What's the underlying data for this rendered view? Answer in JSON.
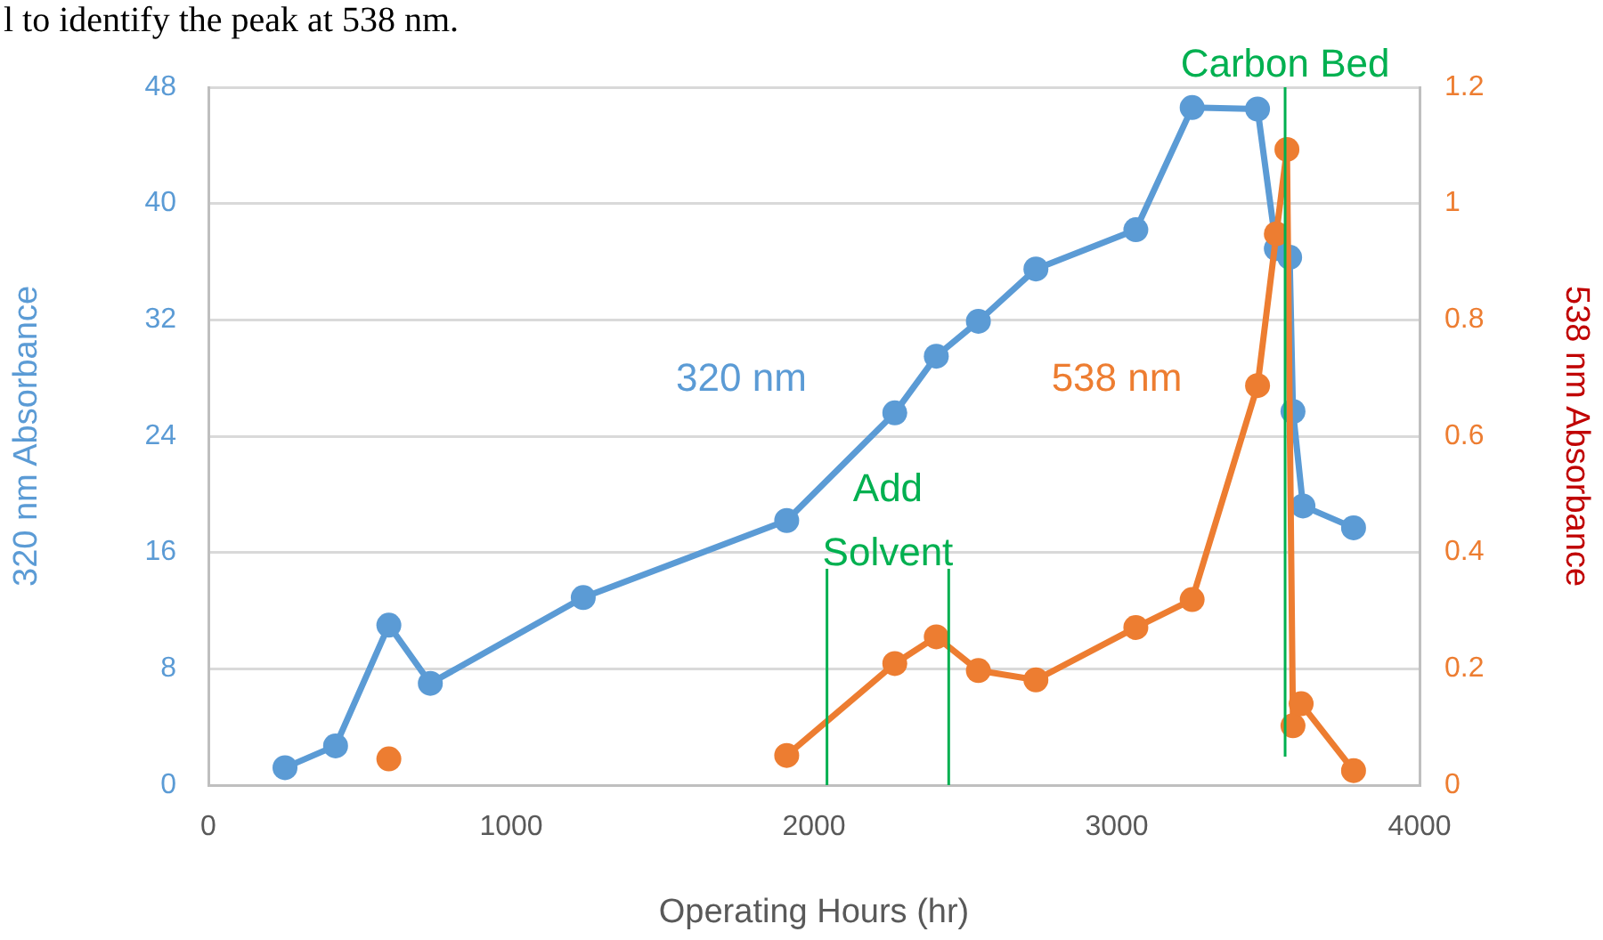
{
  "chart_data": {
    "type": "line",
    "xlabel": "Operating Hours (hr)",
    "ylabel": "320 nm Absorbance",
    "y2label": "538 nm Absorbance",
    "annotations": [
      "l to identify the peak at 538 nm."
    ],
    "xlim": [
      0,
      4000
    ],
    "xticks": [
      0,
      1000,
      2000,
      3000,
      4000
    ],
    "ylim": [
      0,
      48
    ],
    "yticks": [
      0,
      8,
      16,
      24,
      32,
      40,
      48
    ],
    "y2lim": [
      0,
      1.2
    ],
    "y2ticks": [
      0,
      0.2,
      0.4,
      0.6,
      0.8,
      1,
      1.2
    ],
    "grid": "y",
    "legend": false,
    "marker": "circle",
    "line_style": "solid",
    "series": [
      {
        "name": "320 nm",
        "color": "#5b9bd5",
        "x": [
          253,
          420,
          596,
          733,
          1238,
          1910,
          2267,
          2404,
          2543,
          2733,
          3063,
          3249,
          3465,
          3527,
          3571,
          3582,
          3615,
          3782
        ],
        "values": [
          1.2,
          2.7,
          11,
          7,
          12.9,
          18.2,
          25.6,
          29.5,
          31.9,
          35.5,
          38.2,
          46.6,
          46.5,
          36.9,
          36.3,
          25.7,
          19.2,
          17.7
        ]
      },
      {
        "name": "538 nm",
        "color": "#ed7d31",
        "axis": "y2",
        "x": [
          596,
          1000,
          1910,
          2267,
          2404,
          2543,
          2733,
          3063,
          3249,
          3465,
          3527,
          3562,
          3582,
          3609,
          3782
        ],
        "values": [
          0.045,
          null,
          0.051,
          0.209,
          0.255,
          0.197,
          0.181,
          0.271,
          0.319,
          0.687,
          0.948,
          1.093,
          0.102,
          0.14,
          0.025
        ]
      }
    ],
    "ref_lines": [
      {
        "axis": "x",
        "value": 2043,
        "label": "Add Solvent",
        "color": "#00b050"
      },
      {
        "axis": "x",
        "value": 2445,
        "label": null,
        "color": "#00b050"
      },
      {
        "axis": "x",
        "value": 3556,
        "label": "Carbon Bed",
        "color": "#00b050"
      }
    ]
  }
}
